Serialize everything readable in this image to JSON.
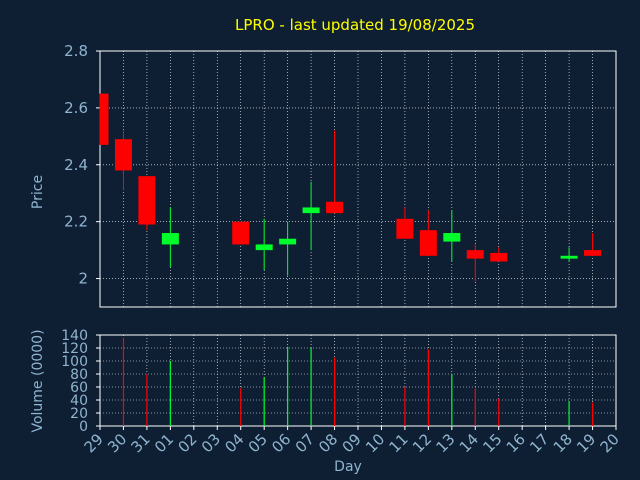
{
  "chart_data": [
    {
      "type": "candlestick",
      "title": "LPRO - last updated 19/08/2025",
      "ylabel": "Price",
      "xlabel": "Day",
      "ylim": [
        1.9,
        2.8
      ],
      "yticks": [
        2.0,
        2.2,
        2.4,
        2.6,
        2.8
      ],
      "ytick_labels": [
        "2",
        "2.2",
        "2.4",
        "2.6",
        "2.8"
      ],
      "grid": true,
      "x_labels": [
        "29",
        "30",
        "31",
        "01",
        "02",
        "03",
        "04",
        "05",
        "06",
        "07",
        "08",
        "09",
        "10",
        "11",
        "12",
        "13",
        "14",
        "15",
        "16",
        "17",
        "18",
        "19",
        "20"
      ],
      "candles": [
        {
          "x": 0,
          "open": 2.65,
          "close": 2.47,
          "high": 2.65,
          "low": 2.47
        },
        {
          "x": 1,
          "open": 2.49,
          "close": 2.38,
          "high": 2.52,
          "low": 2.31
        },
        {
          "x": 2,
          "open": 2.36,
          "close": 2.19,
          "high": 2.36,
          "low": 2.17
        },
        {
          "x": 3,
          "open": 2.12,
          "close": 2.16,
          "high": 2.25,
          "low": 2.04
        },
        {
          "x": 6,
          "open": 2.2,
          "close": 2.12,
          "high": 2.2,
          "low": 2.12
        },
        {
          "x": 7,
          "open": 2.1,
          "close": 2.12,
          "high": 2.21,
          "low": 2.03
        },
        {
          "x": 8,
          "open": 2.12,
          "close": 2.14,
          "high": 2.2,
          "low": 2.01
        },
        {
          "x": 9,
          "open": 2.23,
          "close": 2.25,
          "high": 2.34,
          "low": 2.1
        },
        {
          "x": 10,
          "open": 2.27,
          "close": 2.23,
          "high": 2.52,
          "low": 2.23
        },
        {
          "x": 13,
          "open": 2.21,
          "close": 2.14,
          "high": 2.25,
          "low": 2.14
        },
        {
          "x": 14,
          "open": 2.17,
          "close": 2.08,
          "high": 2.24,
          "low": 2.08
        },
        {
          "x": 15,
          "open": 2.13,
          "close": 2.16,
          "high": 2.24,
          "low": 2.06
        },
        {
          "x": 16,
          "open": 2.1,
          "close": 2.07,
          "high": 2.12,
          "low": 1.99
        },
        {
          "x": 17,
          "open": 2.09,
          "close": 2.06,
          "high": 2.11,
          "low": 2.06
        },
        {
          "x": 20,
          "open": 2.07,
          "close": 2.08,
          "high": 2.11,
          "low": 2.06
        },
        {
          "x": 21,
          "open": 2.1,
          "close": 2.08,
          "high": 2.16,
          "low": 2.08
        }
      ]
    },
    {
      "type": "bar",
      "ylabel": "Volume (0000)",
      "xlabel": "Day",
      "ylim": [
        0,
        140
      ],
      "yticks": [
        0,
        20,
        40,
        60,
        80,
        100,
        120,
        140
      ],
      "grid": true,
      "bars": [
        {
          "x": 1,
          "value": 135,
          "direction": "down"
        },
        {
          "x": 2,
          "value": 80,
          "direction": "down"
        },
        {
          "x": 3,
          "value": 100,
          "direction": "up"
        },
        {
          "x": 6,
          "value": 58,
          "direction": "down"
        },
        {
          "x": 7,
          "value": 75,
          "direction": "up"
        },
        {
          "x": 8,
          "value": 122,
          "direction": "up"
        },
        {
          "x": 9,
          "value": 120,
          "direction": "up"
        },
        {
          "x": 10,
          "value": 105,
          "direction": "down"
        },
        {
          "x": 13,
          "value": 60,
          "direction": "down"
        },
        {
          "x": 14,
          "value": 118,
          "direction": "down"
        },
        {
          "x": 15,
          "value": 80,
          "direction": "up"
        },
        {
          "x": 16,
          "value": 58,
          "direction": "down"
        },
        {
          "x": 17,
          "value": 42,
          "direction": "down"
        },
        {
          "x": 20,
          "value": 38,
          "direction": "up"
        },
        {
          "x": 21,
          "value": 36,
          "direction": "down"
        }
      ]
    }
  ],
  "colors": {
    "background": "#0f1f33",
    "up": "#00ff2a",
    "down": "#ff0000",
    "grid": "#ffffff",
    "axis_text": "#8fb4cf",
    "title": "#ffff00"
  }
}
